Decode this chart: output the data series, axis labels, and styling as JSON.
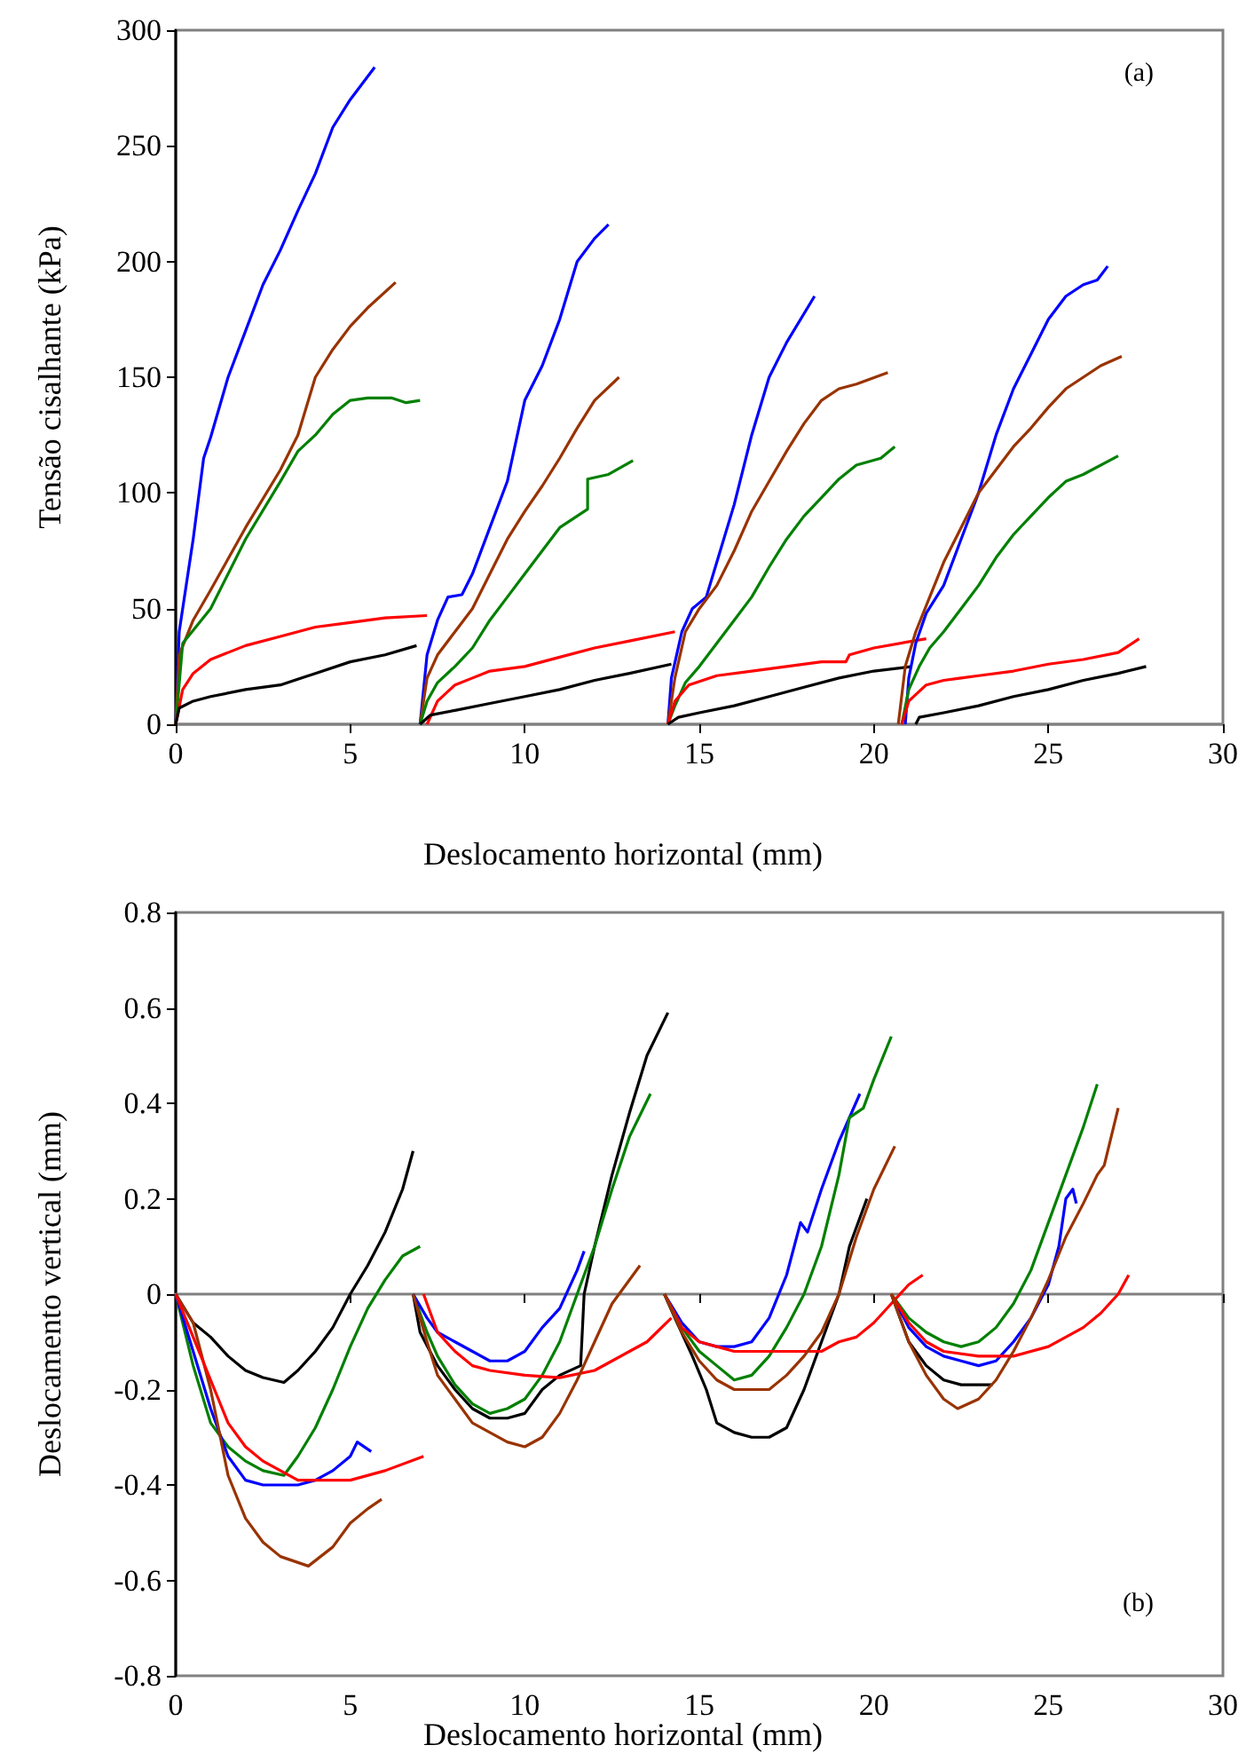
{
  "chart_data": [
    {
      "type": "line",
      "xlabel": "Deslocamento horizontal (mm)",
      "ylabel": "Tensão cisalhante (kPa)",
      "xlim": [
        0,
        30
      ],
      "xticks": [
        0,
        5,
        10,
        15,
        20,
        25,
        30
      ],
      "ylim": [
        0,
        300
      ],
      "yticks": [
        0,
        50,
        100,
        150,
        200,
        250,
        300
      ],
      "annotations": [
        "(a)"
      ],
      "series": [
        {
          "color": "#0000ff",
          "x": [
            0,
            0.1,
            0.3,
            0.5,
            0.8,
            1.0,
            1.5,
            2,
            2.5,
            3,
            3.5,
            4,
            4.5,
            5,
            5.7
          ],
          "values": [
            0,
            40,
            60,
            80,
            115,
            124,
            150,
            170,
            190,
            205,
            222,
            238,
            258,
            270,
            284
          ]
        },
        {
          "color": "#993300",
          "x": [
            0,
            0.1,
            0.5,
            1,
            2,
            3,
            3.5,
            4,
            4.5,
            5,
            5.5,
            6.3
          ],
          "values": [
            0,
            30,
            45,
            58,
            85,
            110,
            125,
            150,
            162,
            172,
            180,
            191
          ]
        },
        {
          "color": "#008000",
          "x": [
            0,
            0.2,
            1,
            2,
            3,
            3.5,
            4,
            4.5,
            5,
            5.5,
            6.2,
            6.6,
            7.0
          ],
          "values": [
            0,
            35,
            50,
            80,
            105,
            118,
            125,
            134,
            140,
            141,
            141,
            139,
            140
          ]
        },
        {
          "color": "#ff0000",
          "x": [
            0,
            0.2,
            0.5,
            1,
            2,
            3,
            4,
            5,
            6,
            7.2
          ],
          "values": [
            0,
            15,
            22,
            28,
            34,
            38,
            42,
            44,
            46,
            47
          ]
        },
        {
          "color": "#000000",
          "x": [
            0,
            0.1,
            0.5,
            1,
            2,
            3,
            4,
            5,
            6,
            6.9
          ],
          "values": [
            0,
            7,
            10,
            12,
            15,
            17,
            22,
            27,
            30,
            34
          ]
        },
        {
          "color": "#0000ff",
          "x": [
            7.0,
            7.2,
            7.5,
            7.8,
            8.2,
            8.5,
            9,
            9.5,
            10,
            10.5,
            11,
            11.5,
            12,
            12.4
          ],
          "values": [
            0,
            30,
            45,
            55,
            56,
            65,
            85,
            105,
            140,
            155,
            175,
            200,
            210,
            216
          ]
        },
        {
          "color": "#993300",
          "x": [
            7.0,
            7.2,
            7.5,
            8,
            8.5,
            9,
            9.5,
            10,
            10.5,
            11,
            11.5,
            12,
            12.7
          ],
          "values": [
            0,
            20,
            30,
            40,
            50,
            65,
            80,
            92,
            103,
            115,
            128,
            140,
            150
          ]
        },
        {
          "color": "#008000",
          "x": [
            7.0,
            7.2,
            7.5,
            8,
            8.5,
            9,
            9.5,
            10,
            10.5,
            11,
            11.8,
            11.8,
            12.4,
            13.1
          ],
          "values": [
            0,
            10,
            18,
            25,
            33,
            45,
            55,
            65,
            75,
            85,
            93,
            106,
            108,
            114
          ]
        },
        {
          "color": "#ff0000",
          "x": [
            7.2,
            7.5,
            8,
            8.5,
            9,
            10,
            11,
            12,
            13,
            14.3
          ],
          "values": [
            0,
            10,
            17,
            20,
            23,
            25,
            29,
            33,
            36,
            40
          ]
        },
        {
          "color": "#000000",
          "x": [
            7.0,
            7.3,
            8,
            9,
            10,
            11,
            12,
            13,
            14.2
          ],
          "values": [
            0,
            4,
            6,
            9,
            12,
            15,
            19,
            22,
            26
          ]
        },
        {
          "color": "#0000ff",
          "x": [
            14.1,
            14.2,
            14.5,
            14.8,
            15.2,
            15.5,
            16,
            16.5,
            17,
            17.5,
            18.3
          ],
          "values": [
            0,
            20,
            40,
            50,
            55,
            70,
            95,
            125,
            150,
            165,
            185
          ]
        },
        {
          "color": "#993300",
          "x": [
            14.1,
            14.3,
            14.6,
            15,
            15.5,
            16,
            16.5,
            17,
            17.5,
            18,
            18.5,
            19,
            19.5,
            20.4
          ],
          "values": [
            0,
            20,
            40,
            50,
            60,
            75,
            92,
            105,
            118,
            130,
            140,
            145,
            147,
            152
          ]
        },
        {
          "color": "#008000",
          "x": [
            14.1,
            14.3,
            14.6,
            15,
            15.5,
            16,
            16.5,
            17,
            17.5,
            18,
            18.5,
            19,
            19.5,
            20.2,
            20.6
          ],
          "values": [
            0,
            8,
            18,
            25,
            35,
            45,
            55,
            68,
            80,
            90,
            98,
            106,
            112,
            115,
            120
          ]
        },
        {
          "color": "#ff0000",
          "x": [
            14.1,
            14.3,
            14.7,
            15.5,
            16.5,
            17.5,
            18.5,
            19.2,
            19.3,
            20,
            21.5
          ],
          "values": [
            0,
            10,
            17,
            21,
            23,
            25,
            27,
            27,
            30,
            33,
            37
          ]
        },
        {
          "color": "#000000",
          "x": [
            14.1,
            14.4,
            15,
            16,
            17,
            18,
            19,
            20,
            21.1
          ],
          "values": [
            0,
            3,
            5,
            8,
            12,
            16,
            20,
            23,
            25
          ]
        },
        {
          "color": "#0000ff",
          "x": [
            20.9,
            21.0,
            21.2,
            21.5,
            22,
            22.5,
            23,
            23.5,
            24,
            24.5,
            25,
            25.5,
            26,
            26.4,
            26.7
          ],
          "values": [
            0,
            20,
            35,
            48,
            60,
            80,
            100,
            125,
            145,
            160,
            175,
            185,
            190,
            192,
            198
          ]
        },
        {
          "color": "#993300",
          "x": [
            20.7,
            20.9,
            21.2,
            21.6,
            22,
            22.5,
            23,
            23.5,
            24,
            24.5,
            25,
            25.5,
            26,
            26.5,
            27.1
          ],
          "values": [
            0,
            25,
            40,
            55,
            70,
            85,
            100,
            110,
            120,
            128,
            137,
            145,
            150,
            155,
            159
          ]
        },
        {
          "color": "#008000",
          "x": [
            20.8,
            21.0,
            21.3,
            21.6,
            22,
            22.5,
            23,
            23.5,
            24,
            24.5,
            25,
            25.5,
            26,
            27.0
          ],
          "values": [
            0,
            15,
            25,
            33,
            40,
            50,
            60,
            72,
            82,
            90,
            98,
            105,
            108,
            116
          ]
        },
        {
          "color": "#ff0000",
          "x": [
            20.8,
            21.0,
            21.5,
            22,
            22.5,
            23,
            24,
            25,
            26,
            27,
            27.6
          ],
          "values": [
            0,
            10,
            17,
            19,
            20,
            21,
            23,
            26,
            28,
            31,
            37
          ]
        },
        {
          "color": "#000000",
          "x": [
            21.2,
            21.3,
            22,
            23,
            24,
            25,
            26,
            27,
            27.8
          ],
          "values": [
            0,
            3,
            5,
            8,
            12,
            15,
            19,
            22,
            25
          ]
        }
      ]
    },
    {
      "type": "line",
      "xlabel": "Deslocamento horizontal (mm)",
      "ylabel": "Deslocamento vertical (mm)",
      "xlim": [
        0,
        30
      ],
      "xticks": [
        0,
        5,
        10,
        15,
        20,
        25,
        30
      ],
      "ylim": [
        -0.8,
        0.8
      ],
      "yticks": [
        -0.8,
        -0.6,
        -0.4,
        -0.2,
        0,
        0.2,
        0.4,
        0.6,
        0.8
      ],
      "annotations": [
        "(b)"
      ],
      "series": [
        {
          "color": "#000000",
          "x": [
            0,
            0.5,
            1,
            1.5,
            2,
            2.5,
            3.1,
            3.5,
            4,
            4.5,
            5,
            5.5,
            6,
            6.5,
            6.8
          ],
          "values": [
            0,
            -0.06,
            -0.09,
            -0.13,
            -0.16,
            -0.175,
            -0.185,
            -0.16,
            -0.12,
            -0.07,
            0,
            0.06,
            0.13,
            0.22,
            0.3
          ]
        },
        {
          "color": "#008000",
          "x": [
            0,
            0.5,
            1,
            1.5,
            2,
            2.5,
            3.1,
            3.5,
            4,
            4.5,
            5,
            5.5,
            6,
            6.5,
            7.0
          ],
          "values": [
            0,
            -0.15,
            -0.27,
            -0.32,
            -0.35,
            -0.37,
            -0.38,
            -0.34,
            -0.28,
            -0.2,
            -0.11,
            -0.03,
            0.03,
            0.08,
            0.1
          ]
        },
        {
          "color": "#0000ff",
          "x": [
            0,
            0.5,
            1,
            1.5,
            2,
            2.5,
            3,
            3.5,
            4,
            4.5,
            5,
            5.2,
            5.6
          ],
          "values": [
            0,
            -0.12,
            -0.24,
            -0.34,
            -0.39,
            -0.4,
            -0.4,
            -0.4,
            -0.39,
            -0.37,
            -0.34,
            -0.31,
            -0.33
          ]
        },
        {
          "color": "#993300",
          "x": [
            0,
            0.5,
            1,
            1.5,
            2,
            2.5,
            3,
            3.8,
            4.5,
            5,
            5.5,
            5.9
          ],
          "values": [
            0,
            -0.06,
            -0.2,
            -0.38,
            -0.47,
            -0.52,
            -0.55,
            -0.57,
            -0.53,
            -0.48,
            -0.45,
            -0.43
          ]
        },
        {
          "color": "#ff0000",
          "x": [
            0,
            0.5,
            1,
            1.5,
            2,
            2.5,
            3,
            3.5,
            4,
            5,
            6,
            7.1
          ],
          "values": [
            0,
            -0.09,
            -0.18,
            -0.27,
            -0.32,
            -0.35,
            -0.37,
            -0.39,
            -0.39,
            -0.39,
            -0.37,
            -0.34
          ]
        },
        {
          "color": "#000000",
          "x": [
            6.8,
            7,
            7.5,
            8,
            8.5,
            9,
            9.5,
            10,
            10.5,
            11,
            11.6,
            11.7,
            12,
            12.5,
            13,
            13.5,
            14.1
          ],
          "values": [
            0,
            -0.08,
            -0.15,
            -0.2,
            -0.24,
            -0.26,
            -0.26,
            -0.25,
            -0.2,
            -0.17,
            -0.15,
            0,
            0.1,
            0.25,
            0.38,
            0.5,
            0.59
          ]
        },
        {
          "color": "#008000",
          "x": [
            6.8,
            7.2,
            7.5,
            8,
            8.5,
            9,
            9.5,
            10,
            10.5,
            11,
            11.5,
            12,
            12.5,
            13,
            13.6
          ],
          "values": [
            0,
            -0.08,
            -0.13,
            -0.19,
            -0.23,
            -0.25,
            -0.24,
            -0.22,
            -0.17,
            -0.1,
            0,
            0.1,
            0.22,
            0.33,
            0.42
          ]
        },
        {
          "color": "#0000ff",
          "x": [
            6.8,
            7.2,
            7.5,
            8,
            8.5,
            9,
            9.5,
            10,
            10.5,
            11,
            11.5,
            11.7
          ],
          "values": [
            0,
            -0.05,
            -0.08,
            -0.1,
            -0.12,
            -0.14,
            -0.14,
            -0.12,
            -0.07,
            -0.03,
            0.05,
            0.09
          ]
        },
        {
          "color": "#ff0000",
          "x": [
            7.1,
            7.5,
            8,
            8.5,
            9,
            10,
            11,
            12,
            12.5,
            13,
            13.5,
            14.2
          ],
          "values": [
            0,
            -0.08,
            -0.12,
            -0.15,
            -0.16,
            -0.17,
            -0.175,
            -0.16,
            -0.14,
            -0.12,
            -0.1,
            -0.05
          ]
        },
        {
          "color": "#993300",
          "x": [
            6.8,
            7.2,
            7.5,
            8,
            8.5,
            9,
            9.5,
            10,
            10.5,
            11,
            11.5,
            12,
            12.5,
            13.3
          ],
          "values": [
            0,
            -0.1,
            -0.17,
            -0.22,
            -0.27,
            -0.29,
            -0.31,
            -0.32,
            -0.3,
            -0.25,
            -0.18,
            -0.1,
            -0.02,
            0.06
          ]
        },
        {
          "color": "#000000",
          "x": [
            14,
            14.3,
            14.8,
            15.2,
            15.5,
            16,
            16.5,
            17,
            17.5,
            18,
            18.5,
            19,
            19.3,
            19.8
          ],
          "values": [
            0,
            -0.05,
            -0.13,
            -0.2,
            -0.27,
            -0.29,
            -0.3,
            -0.3,
            -0.28,
            -0.2,
            -0.1,
            0,
            0.1,
            0.2
          ]
        },
        {
          "color": "#0000ff",
          "x": [
            14,
            14.5,
            15,
            15.5,
            16,
            16.5,
            17,
            17.5,
            17.9,
            18.1,
            18.5,
            19,
            19.6
          ],
          "values": [
            0,
            -0.06,
            -0.1,
            -0.11,
            -0.11,
            -0.1,
            -0.05,
            0.04,
            0.15,
            0.13,
            0.22,
            0.32,
            0.42
          ]
        },
        {
          "color": "#008000",
          "x": [
            14,
            14.5,
            15,
            15.5,
            16,
            16.5,
            17,
            17.5,
            18,
            18.5,
            19,
            19.3,
            19.7,
            20,
            20.5
          ],
          "values": [
            0,
            -0.07,
            -0.12,
            -0.15,
            -0.18,
            -0.17,
            -0.13,
            -0.07,
            0,
            0.1,
            0.25,
            0.37,
            0.39,
            0.45,
            0.54
          ]
        },
        {
          "color": "#ff0000",
          "x": [
            14,
            14.5,
            15,
            15.5,
            16,
            17,
            18,
            18.5,
            19,
            19.5,
            20,
            20.5,
            21,
            21.4
          ],
          "values": [
            0,
            -0.07,
            -0.1,
            -0.11,
            -0.12,
            -0.12,
            -0.12,
            -0.12,
            -0.1,
            -0.09,
            -0.06,
            -0.02,
            0.02,
            0.04
          ]
        },
        {
          "color": "#993300",
          "x": [
            14,
            14.5,
            15,
            15.5,
            16,
            16.5,
            17,
            17.5,
            18,
            18.5,
            19,
            19.5,
            20,
            20.6
          ],
          "values": [
            0,
            -0.08,
            -0.14,
            -0.18,
            -0.2,
            -0.2,
            -0.2,
            -0.17,
            -0.13,
            -0.08,
            0,
            0.12,
            0.22,
            0.31
          ]
        },
        {
          "color": "#000000",
          "x": [
            20.5,
            21,
            21.5,
            22,
            22.5,
            23,
            23.4
          ],
          "values": [
            0,
            -0.1,
            -0.15,
            -0.18,
            -0.19,
            -0.19,
            -0.19
          ]
        },
        {
          "color": "#0000ff",
          "x": [
            20.5,
            21,
            21.5,
            22,
            22.5,
            23,
            23.5,
            24,
            24.5,
            25,
            25.3,
            25.5,
            25.7,
            25.8
          ],
          "values": [
            0,
            -0.07,
            -0.11,
            -0.13,
            -0.14,
            -0.15,
            -0.14,
            -0.1,
            -0.05,
            0.02,
            0.1,
            0.2,
            0.22,
            0.19
          ]
        },
        {
          "color": "#008000",
          "x": [
            20.5,
            21,
            21.5,
            22,
            22.5,
            23,
            23.5,
            24,
            24.5,
            25,
            25.5,
            26,
            26.4
          ],
          "values": [
            0,
            -0.05,
            -0.08,
            -0.1,
            -0.11,
            -0.1,
            -0.07,
            -0.02,
            0.05,
            0.15,
            0.25,
            0.35,
            0.44
          ]
        },
        {
          "color": "#ff0000",
          "x": [
            20.5,
            21,
            21.5,
            22,
            23,
            24,
            25,
            25.5,
            26,
            26.5,
            27,
            27.3
          ],
          "values": [
            0,
            -0.06,
            -0.1,
            -0.12,
            -0.13,
            -0.13,
            -0.11,
            -0.09,
            -0.07,
            -0.04,
            0,
            0.04
          ]
        },
        {
          "color": "#993300",
          "x": [
            20.5,
            21,
            21.5,
            22,
            22.4,
            23,
            23.5,
            24,
            24.5,
            25,
            25.5,
            26,
            26.4,
            26.6,
            27.0
          ],
          "values": [
            0,
            -0.1,
            -0.17,
            -0.22,
            -0.24,
            -0.22,
            -0.18,
            -0.12,
            -0.05,
            0.03,
            0.12,
            0.19,
            0.25,
            0.27,
            0.39
          ]
        }
      ]
    }
  ]
}
